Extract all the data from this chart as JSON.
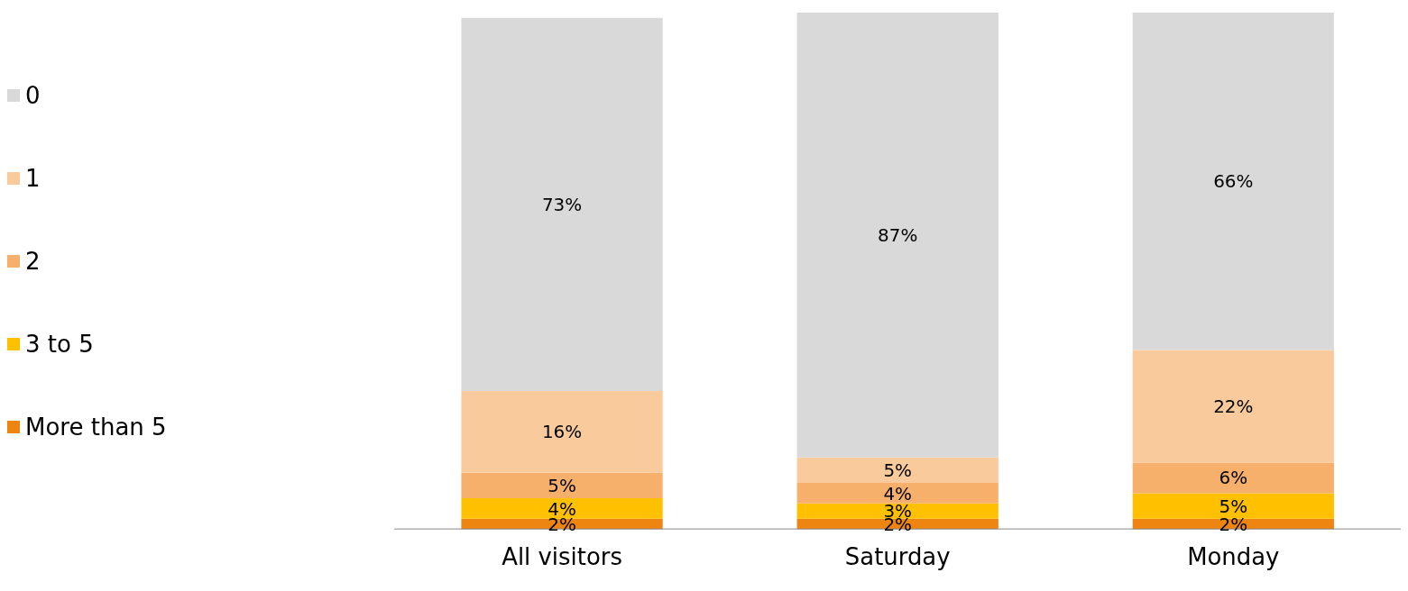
{
  "chart_data": {
    "type": "bar",
    "stacked": true,
    "legend": "left",
    "grid": false,
    "categories": [
      "All visitors",
      "Saturday",
      "Monday"
    ],
    "series": [
      {
        "name": "More than 5",
        "color": "#ee8510",
        "values": [
          2,
          2,
          2
        ],
        "value_labels": [
          "2%",
          "2%",
          "2%"
        ]
      },
      {
        "name": "3 to 5",
        "color": "#ffc000",
        "values": [
          4,
          3,
          5
        ],
        "value_labels": [
          "4%",
          "3%",
          "5%"
        ]
      },
      {
        "name": "2",
        "color": "#f7b06b",
        "values": [
          5,
          4,
          6
        ],
        "value_labels": [
          "5%",
          "4%",
          "6%"
        ]
      },
      {
        "name": "1",
        "color": "#f9cb9c",
        "values": [
          16,
          5,
          22
        ],
        "value_labels": [
          "16%",
          "5%",
          "22%"
        ]
      },
      {
        "name": "0",
        "color": "#d9d9d9",
        "values": [
          73,
          87,
          66
        ],
        "value_labels": [
          "73%",
          "87%",
          "66%"
        ]
      }
    ]
  }
}
